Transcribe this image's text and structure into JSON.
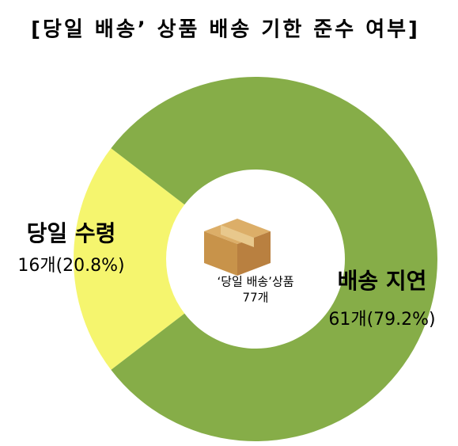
{
  "chart_data": {
    "type": "pie",
    "title": "[당일 배송’ 상품 배송 기한 준수 여부]",
    "categories": [
      "당일 수령",
      "배송 지연"
    ],
    "values": [
      20.8,
      79.2
    ],
    "value_labels": [
      "16개(20.8%)",
      "61개(79.2%)"
    ],
    "colors": [
      "#f5f56e",
      "#86ad48"
    ],
    "center_label": [
      "‘당일 배송’상품",
      "77개"
    ]
  }
}
